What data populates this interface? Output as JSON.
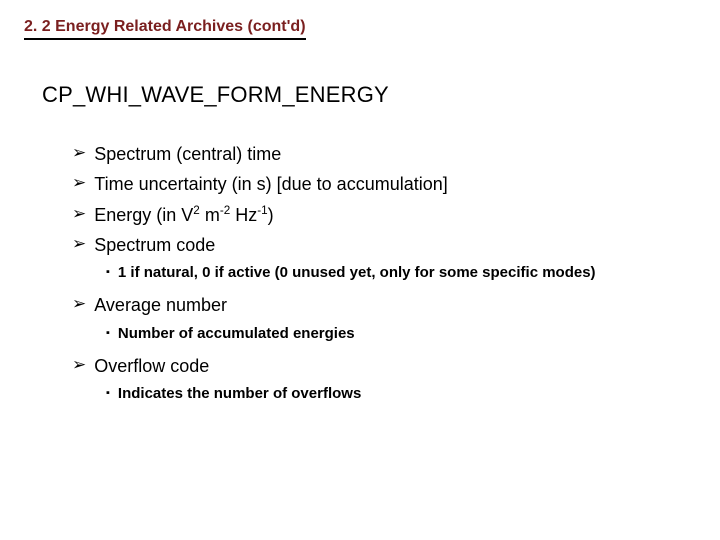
{
  "colors": {
    "section_heading": "#7a1f1f",
    "text": "#000000",
    "background": "#ffffff",
    "underline": "#000000"
  },
  "typography": {
    "section_heading_fontsize": 16,
    "title_fontsize": 22,
    "level1_fontsize": 18,
    "level2_fontsize": 15,
    "level2_fontweight": "bold"
  },
  "bullets": {
    "level1_glyph": "➢",
    "level2_glyph": "▪"
  },
  "section_heading": "2. 2  Energy Related Archives (cont'd)",
  "title": "CP_WHI_WAVE_FORM_ENERGY",
  "items": [
    {
      "level": 1,
      "text": "Spectrum (central) time"
    },
    {
      "level": 1,
      "text": "Time uncertainty (in s) [due to accumulation]"
    },
    {
      "level": 1,
      "html": "Energy (in V<span class=\"sup\">2</span> m<span class=\"sup\">-2</span> Hz<span class=\"sup\">-1</span>)"
    },
    {
      "level": 1,
      "text": "Spectrum code"
    },
    {
      "level": 2,
      "text": "1 if natural, 0 if active (0 unused yet, only for some specific modes)"
    },
    {
      "level": 1,
      "text": "Average number"
    },
    {
      "level": 2,
      "text": "Number of accumulated energies"
    },
    {
      "level": 1,
      "text": "Overflow code"
    },
    {
      "level": 2,
      "text": "Indicates the number of overflows"
    }
  ]
}
